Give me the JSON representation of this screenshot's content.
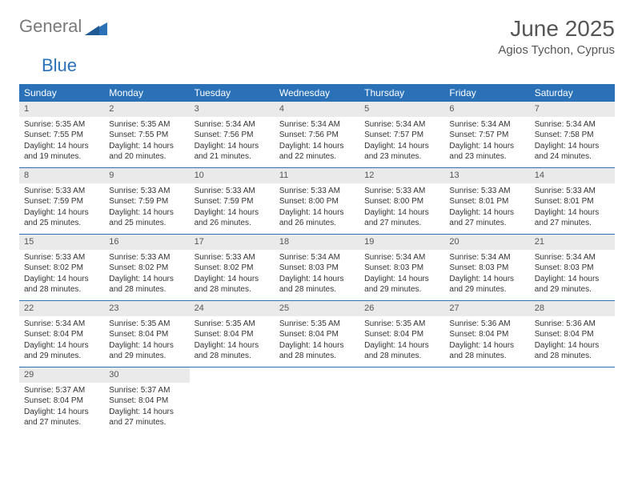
{
  "logo": {
    "gray": "General",
    "blue": "Blue"
  },
  "title": "June 2025",
  "location": "Agios Tychon, Cyprus",
  "colors": {
    "header_bg": "#2a71b8",
    "header_text": "#ffffff",
    "daynum_bg": "#eaeaea",
    "text": "#333333",
    "title_color": "#565656",
    "logo_gray": "#7a7a7a",
    "logo_blue": "#2a71b8",
    "week_divider": "#2a71b8"
  },
  "weekdays": [
    "Sunday",
    "Monday",
    "Tuesday",
    "Wednesday",
    "Thursday",
    "Friday",
    "Saturday"
  ],
  "days": [
    {
      "n": 1,
      "sr": "5:35 AM",
      "ss": "7:55 PM",
      "dlh": 14,
      "dlm": 19
    },
    {
      "n": 2,
      "sr": "5:35 AM",
      "ss": "7:55 PM",
      "dlh": 14,
      "dlm": 20
    },
    {
      "n": 3,
      "sr": "5:34 AM",
      "ss": "7:56 PM",
      "dlh": 14,
      "dlm": 21
    },
    {
      "n": 4,
      "sr": "5:34 AM",
      "ss": "7:56 PM",
      "dlh": 14,
      "dlm": 22
    },
    {
      "n": 5,
      "sr": "5:34 AM",
      "ss": "7:57 PM",
      "dlh": 14,
      "dlm": 23
    },
    {
      "n": 6,
      "sr": "5:34 AM",
      "ss": "7:57 PM",
      "dlh": 14,
      "dlm": 23
    },
    {
      "n": 7,
      "sr": "5:34 AM",
      "ss": "7:58 PM",
      "dlh": 14,
      "dlm": 24
    },
    {
      "n": 8,
      "sr": "5:33 AM",
      "ss": "7:59 PM",
      "dlh": 14,
      "dlm": 25
    },
    {
      "n": 9,
      "sr": "5:33 AM",
      "ss": "7:59 PM",
      "dlh": 14,
      "dlm": 25
    },
    {
      "n": 10,
      "sr": "5:33 AM",
      "ss": "7:59 PM",
      "dlh": 14,
      "dlm": 26
    },
    {
      "n": 11,
      "sr": "5:33 AM",
      "ss": "8:00 PM",
      "dlh": 14,
      "dlm": 26
    },
    {
      "n": 12,
      "sr": "5:33 AM",
      "ss": "8:00 PM",
      "dlh": 14,
      "dlm": 27
    },
    {
      "n": 13,
      "sr": "5:33 AM",
      "ss": "8:01 PM",
      "dlh": 14,
      "dlm": 27
    },
    {
      "n": 14,
      "sr": "5:33 AM",
      "ss": "8:01 PM",
      "dlh": 14,
      "dlm": 27
    },
    {
      "n": 15,
      "sr": "5:33 AM",
      "ss": "8:02 PM",
      "dlh": 14,
      "dlm": 28
    },
    {
      "n": 16,
      "sr": "5:33 AM",
      "ss": "8:02 PM",
      "dlh": 14,
      "dlm": 28
    },
    {
      "n": 17,
      "sr": "5:33 AM",
      "ss": "8:02 PM",
      "dlh": 14,
      "dlm": 28
    },
    {
      "n": 18,
      "sr": "5:34 AM",
      "ss": "8:03 PM",
      "dlh": 14,
      "dlm": 28
    },
    {
      "n": 19,
      "sr": "5:34 AM",
      "ss": "8:03 PM",
      "dlh": 14,
      "dlm": 29
    },
    {
      "n": 20,
      "sr": "5:34 AM",
      "ss": "8:03 PM",
      "dlh": 14,
      "dlm": 29
    },
    {
      "n": 21,
      "sr": "5:34 AM",
      "ss": "8:03 PM",
      "dlh": 14,
      "dlm": 29
    },
    {
      "n": 22,
      "sr": "5:34 AM",
      "ss": "8:04 PM",
      "dlh": 14,
      "dlm": 29
    },
    {
      "n": 23,
      "sr": "5:35 AM",
      "ss": "8:04 PM",
      "dlh": 14,
      "dlm": 29
    },
    {
      "n": 24,
      "sr": "5:35 AM",
      "ss": "8:04 PM",
      "dlh": 14,
      "dlm": 28
    },
    {
      "n": 25,
      "sr": "5:35 AM",
      "ss": "8:04 PM",
      "dlh": 14,
      "dlm": 28
    },
    {
      "n": 26,
      "sr": "5:35 AM",
      "ss": "8:04 PM",
      "dlh": 14,
      "dlm": 28
    },
    {
      "n": 27,
      "sr": "5:36 AM",
      "ss": "8:04 PM",
      "dlh": 14,
      "dlm": 28
    },
    {
      "n": 28,
      "sr": "5:36 AM",
      "ss": "8:04 PM",
      "dlh": 14,
      "dlm": 28
    },
    {
      "n": 29,
      "sr": "5:37 AM",
      "ss": "8:04 PM",
      "dlh": 14,
      "dlm": 27
    },
    {
      "n": 30,
      "sr": "5:37 AM",
      "ss": "8:04 PM",
      "dlh": 14,
      "dlm": 27
    }
  ],
  "labels": {
    "sunrise": "Sunrise:",
    "sunset": "Sunset:",
    "daylight_prefix": "Daylight:",
    "hours_word": "hours",
    "and_word": "and",
    "minutes_word": "minutes."
  },
  "layout": {
    "start_weekday_index": 0,
    "total_cells": 35
  }
}
